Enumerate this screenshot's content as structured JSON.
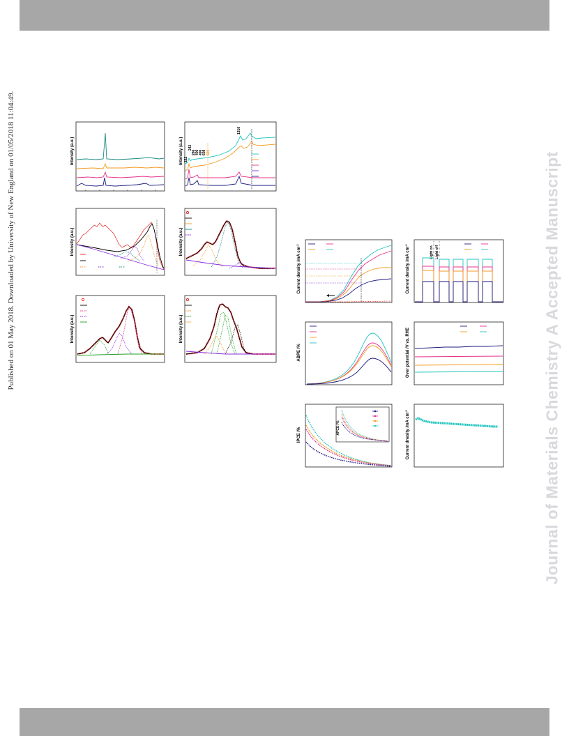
{
  "page": {
    "published_line": "Published on 01 May 2018. Downloaded by University of New England on 01/05/2018 11:04:49.",
    "watermark": "Journal of Materials Chemistry A Accepted Manuscript"
  },
  "colors": {
    "navy": "#1a1a80",
    "magenta": "#e8308a",
    "orange": "#f39a1e",
    "cyan": "#22c4c0",
    "teal": "#1a8a82",
    "red": "#e62020",
    "purple": "#8a2be2",
    "green": "#20a020",
    "black": "#000000"
  },
  "panels": {
    "xrd": {
      "ylabel": "Intensity (a.u.)"
    },
    "raman": {
      "ylabel": "Intensity (a.u.)",
      "peak_labels": [
        "222",
        "242",
        "286",
        "406",
        "496",
        "608",
        "600",
        "1316"
      ]
    },
    "xps_1": {
      "ylabel": "Intensity (a.u.)"
    },
    "xps_2": {
      "ylabel": "Intensity (a.u.)"
    },
    "xps_3": {
      "ylabel": "Intensity (a.u.)"
    },
    "xps_4": {
      "ylabel": "Intensity (a.u.)"
    },
    "lsv": {
      "ylabel": "Current density /mA cm",
      "ylabel_sup": "-2"
    },
    "chopped": {
      "ylabel": "Current density /mA cm",
      "ylabel_sup": "-2",
      "light_on": "Light on",
      "light_off": "Light off"
    },
    "abpe": {
      "ylabel": "ABPE /%"
    },
    "overpotential": {
      "ylabel": "Over potential /V vs. RHE"
    },
    "ipce": {
      "ylabel": "IPCE /%",
      "inset_ylabel": "APCE /%"
    },
    "stability": {
      "ylabel": "Current dnesity /mA cm",
      "ylabel_sup": "-2"
    }
  }
}
